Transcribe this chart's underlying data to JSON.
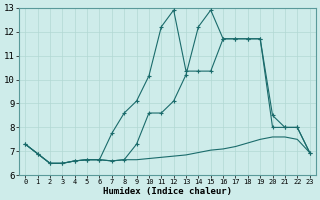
{
  "xlabel": "Humidex (Indice chaleur)",
  "background_color": "#ceecea",
  "grid_color": "#b2d8d4",
  "line_color": "#1a6b6b",
  "xlim": [
    -0.5,
    23.5
  ],
  "ylim": [
    6,
    13
  ],
  "xticks": [
    0,
    1,
    2,
    3,
    4,
    5,
    6,
    7,
    8,
    9,
    10,
    11,
    12,
    13,
    14,
    15,
    16,
    17,
    18,
    19,
    20,
    21,
    22,
    23
  ],
  "yticks": [
    6,
    7,
    8,
    9,
    10,
    11,
    12,
    13
  ],
  "series1_x": [
    0,
    1,
    2,
    3,
    4,
    5,
    6,
    7,
    8,
    9,
    10,
    11,
    12,
    13,
    14,
    15,
    16,
    17,
    18,
    19,
    20,
    21,
    22,
    23
  ],
  "series1_y": [
    7.3,
    6.9,
    6.5,
    6.5,
    6.6,
    6.65,
    6.65,
    6.6,
    6.65,
    6.65,
    6.7,
    6.75,
    6.8,
    6.85,
    6.95,
    7.05,
    7.1,
    7.2,
    7.35,
    7.5,
    7.6,
    7.6,
    7.5,
    6.95
  ],
  "series2_x": [
    0,
    1,
    2,
    3,
    4,
    5,
    6,
    7,
    8,
    9,
    10,
    11,
    12,
    13,
    14,
    15,
    16,
    17,
    18,
    19,
    20,
    21,
    22,
    23
  ],
  "series2_y": [
    7.3,
    6.9,
    6.5,
    6.5,
    6.6,
    6.65,
    6.65,
    7.75,
    8.6,
    9.1,
    10.15,
    12.2,
    12.9,
    10.35,
    10.35,
    10.35,
    11.7,
    11.7,
    11.7,
    11.7,
    8.5,
    8.0,
    8.0,
    6.95
  ],
  "series3_x": [
    0,
    1,
    2,
    3,
    4,
    5,
    6,
    7,
    8,
    9,
    10,
    11,
    12,
    13,
    14,
    15,
    16,
    17,
    18,
    19,
    20,
    21,
    22,
    23
  ],
  "series3_y": [
    7.3,
    6.9,
    6.5,
    6.5,
    6.6,
    6.65,
    6.65,
    6.6,
    6.65,
    7.3,
    8.6,
    8.6,
    9.1,
    10.2,
    12.2,
    12.9,
    11.7,
    11.7,
    11.7,
    11.7,
    8.0,
    8.0,
    8.0,
    6.95
  ]
}
